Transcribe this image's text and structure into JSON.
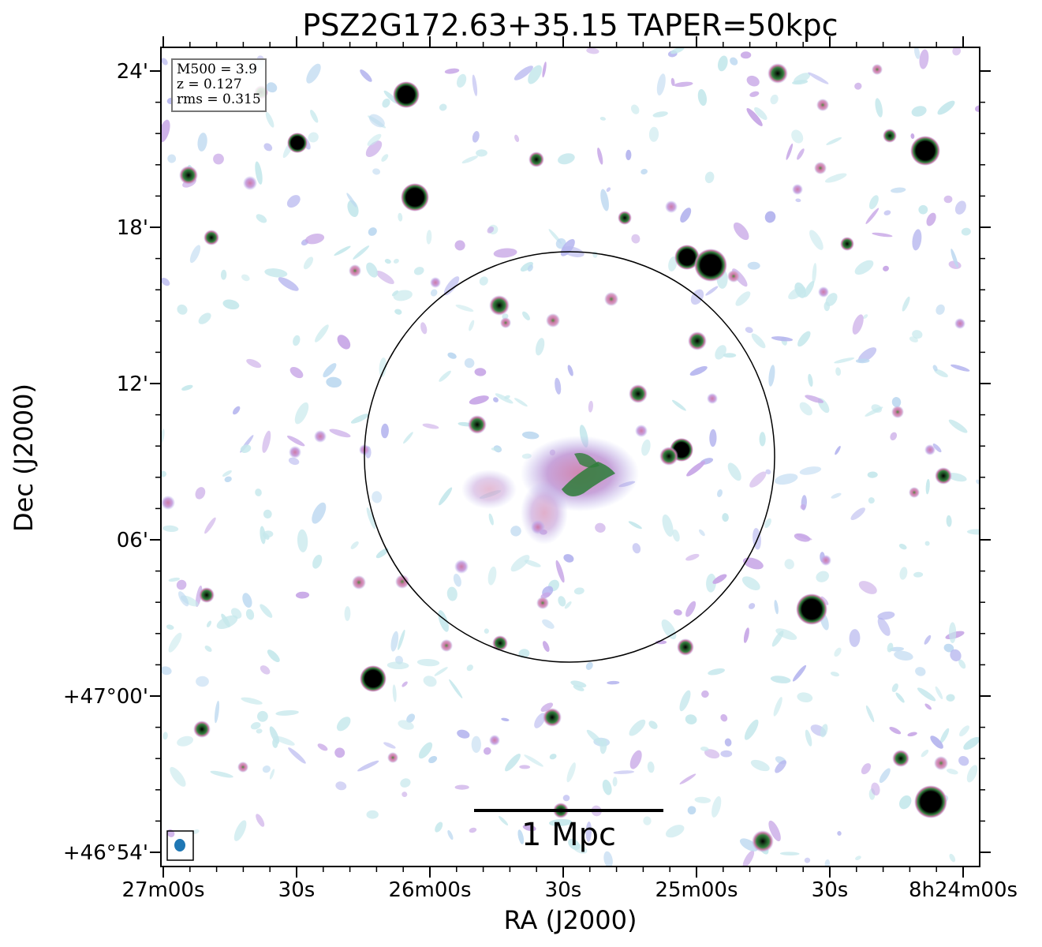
{
  "title": "PSZ2G172.63+35.15 TAPER=50kpc",
  "xlabel": "RA (J2000)",
  "ylabel": "Dec (J2000)",
  "x_ticks": [
    "27m00s",
    "30s",
    "26m00s",
    "30s",
    "25m00s",
    "30s",
    "8h24m00s"
  ],
  "y_ticks": [
    "24'",
    "18'",
    "12'",
    "06'",
    "+47°00'",
    "+46°54'"
  ],
  "info": {
    "mass": "M500 = 3.9",
    "redshift": "z = 0.127",
    "rms": "rms = 0.315"
  },
  "scale_bar": {
    "label": "1 Mpc"
  },
  "colors": {
    "background": "#ffffff",
    "noise": "#c6e8ec",
    "low": "#b4b4ee",
    "mid": "#cc7aa8",
    "high": "#2e7d3a",
    "peak": "#000000",
    "beam": "#1f77b4",
    "circle": "#000000"
  }
}
